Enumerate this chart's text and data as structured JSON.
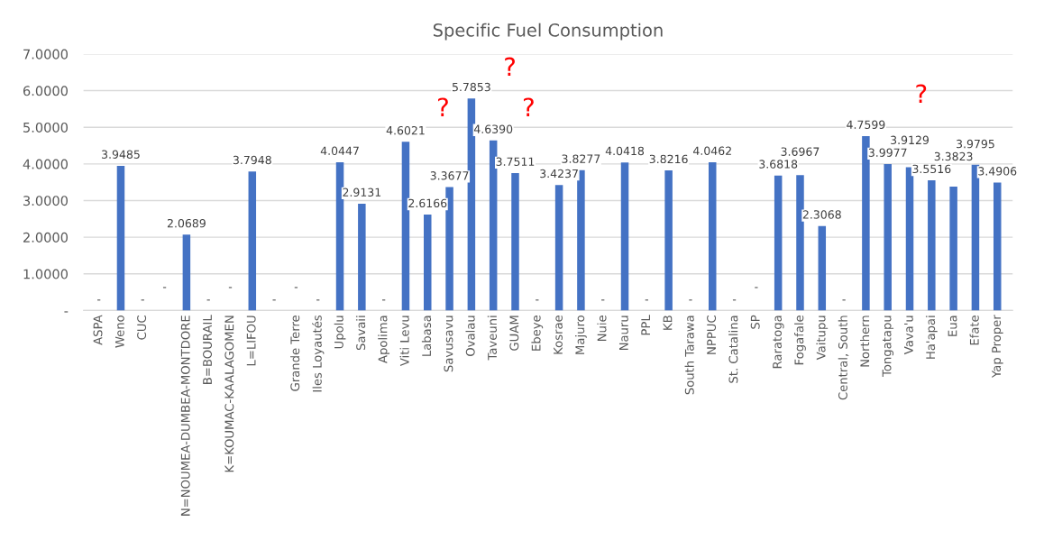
{
  "chart_data": {
    "type": "bar",
    "title": "Specific Fuel Consumption",
    "categories": [
      "ASPA",
      "Weno",
      "CUC",
      null,
      "N=NOUMEA-DUMBEA-MONTDORE",
      "B=BOURAIL",
      "K=KOUMAC-KAALAGOMEN",
      "L=LIFOU",
      null,
      "Grande Terre",
      "Iles Loyautés",
      "Upolu",
      "Savaii",
      "Apolima",
      "Viti Levu",
      "Labasa",
      "Savusavu",
      "Ovalau",
      "Taveuni",
      "GUAM",
      "Ebeye",
      "Kosrae",
      "Majuro",
      "Nuie",
      "Nauru",
      "PPL",
      "KB",
      "South Tarawa",
      "NPPUC",
      "St. Catalina",
      "SP",
      "Raratoga",
      "Fogafale",
      "Vaitupu",
      "Central, South",
      "Northern",
      "Tongatapu",
      "Vava'u",
      "Ha'apai",
      "Eua",
      "Efate",
      "Yap Proper"
    ],
    "values": [
      0,
      3.9485,
      0,
      0,
      2.0689,
      0,
      0,
      3.7948,
      0,
      0,
      0,
      4.0447,
      2.9131,
      0,
      4.6021,
      2.6166,
      3.3677,
      5.7853,
      4.639,
      3.7511,
      0,
      3.4237,
      3.8277,
      0,
      4.0418,
      0,
      3.8216,
      0,
      4.0462,
      0,
      0,
      3.6818,
      3.6967,
      2.3068,
      0,
      4.7599,
      3.9977,
      3.9129,
      3.5516,
      3.3823,
      3.9795,
      3.4906
    ],
    "value_labels": [
      "-",
      "3.9485",
      "-",
      "-",
      "2.0689",
      "-",
      "-",
      "3.7948",
      "-",
      "-",
      "-",
      "4.0447",
      "2.9131",
      "-",
      "4.6021",
      "2.6166",
      "3.3677",
      "5.7853",
      "4.6390",
      "3.7511",
      "-",
      "3.4237",
      "3.8277",
      "-",
      "4.0418",
      "-",
      "3.8216",
      "-",
      "4.0462",
      "-",
      "-",
      "3.6818",
      "3.6967",
      "2.3068",
      "-",
      "4.7599",
      "3.9977",
      "3.9129",
      "3.5516",
      "3.3823",
      "3.9795",
      "3.4906"
    ],
    "color": "#4472c4",
    "ylim": [
      0,
      7
    ],
    "yticks": [
      {
        "value": 0,
        "label": "-"
      },
      {
        "value": 1,
        "label": "1.0000"
      },
      {
        "value": 2,
        "label": "2.0000"
      },
      {
        "value": 3,
        "label": "3.0000"
      },
      {
        "value": 4,
        "label": "4.0000"
      },
      {
        "value": 5,
        "label": "5.0000"
      },
      {
        "value": 6,
        "label": "6.0000"
      },
      {
        "value": 7,
        "label": "7.0000"
      }
    ],
    "grid": "y",
    "annotations": [
      "?",
      "?",
      "?",
      "?"
    ]
  }
}
